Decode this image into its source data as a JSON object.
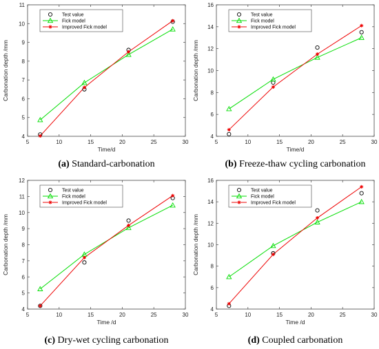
{
  "chart_data": [
    {
      "type": "line",
      "caption_letter": "(a)",
      "caption_text": "Standard-carbonation",
      "xlabel": "Time/d",
      "ylabel": "Carbonation depth /mm",
      "xlim": [
        5,
        30
      ],
      "ylim": [
        4,
        11
      ],
      "xticks": [
        5,
        10,
        15,
        20,
        25,
        30
      ],
      "yticks": [
        4,
        5,
        6,
        7,
        8,
        9,
        10,
        11
      ],
      "legend_position": "top-left",
      "series": [
        {
          "name": "Test value",
          "style": "circle",
          "color": "#000000",
          "x": [
            7,
            14,
            21,
            28
          ],
          "y": [
            4.1,
            6.5,
            8.6,
            10.1
          ]
        },
        {
          "name": "Fick model",
          "style": "triangle",
          "color": "#00dd00",
          "x": [
            7,
            14,
            21,
            28
          ],
          "y": [
            4.87,
            6.85,
            8.35,
            9.7
          ]
        },
        {
          "name": "Improved Fick model",
          "style": "star",
          "color": "#ee0000",
          "x": [
            7,
            14,
            21,
            28
          ],
          "y": [
            4.02,
            6.6,
            8.5,
            10.15
          ]
        }
      ]
    },
    {
      "type": "line",
      "caption_letter": "(b)",
      "caption_text": "Freeze-thaw cycling carbonation",
      "xlabel": "Time/d",
      "ylabel": "Carbonation depth /mm",
      "xlim": [
        5,
        30
      ],
      "ylim": [
        4,
        16
      ],
      "xticks": [
        5,
        10,
        15,
        20,
        25,
        30
      ],
      "yticks": [
        4,
        6,
        8,
        10,
        12,
        14,
        16
      ],
      "legend_position": "top-left",
      "series": [
        {
          "name": "Test value",
          "style": "circle",
          "color": "#000000",
          "x": [
            7,
            14,
            21,
            28
          ],
          "y": [
            4.2,
            8.9,
            12.1,
            13.5
          ]
        },
        {
          "name": "Fick model",
          "style": "triangle",
          "color": "#00dd00",
          "x": [
            7,
            14,
            21,
            28
          ],
          "y": [
            6.5,
            9.2,
            11.2,
            13.0
          ]
        },
        {
          "name": "Improved Fick model",
          "style": "star",
          "color": "#ee0000",
          "x": [
            7,
            14,
            21,
            28
          ],
          "y": [
            4.6,
            8.5,
            11.5,
            14.1
          ]
        }
      ]
    },
    {
      "type": "line",
      "caption_letter": "(c)",
      "caption_text": "Dry-wet cycling carbonation",
      "xlabel": "Time /d",
      "ylabel": "Carbonation depth /mm",
      "xlim": [
        5,
        30
      ],
      "ylim": [
        4,
        12
      ],
      "xticks": [
        5,
        10,
        15,
        20,
        25,
        30
      ],
      "yticks": [
        4,
        5,
        6,
        7,
        8,
        9,
        10,
        11,
        12
      ],
      "legend_position": "top-left",
      "series": [
        {
          "name": "Test value",
          "style": "circle",
          "color": "#000000",
          "x": [
            7,
            14,
            21,
            28
          ],
          "y": [
            4.2,
            6.9,
            9.5,
            10.9
          ]
        },
        {
          "name": "Fick model",
          "style": "triangle",
          "color": "#00dd00",
          "x": [
            7,
            14,
            21,
            28
          ],
          "y": [
            5.25,
            7.4,
            9.05,
            10.45
          ]
        },
        {
          "name": "Improved Fick model",
          "style": "star",
          "color": "#ee0000",
          "x": [
            7,
            14,
            21,
            28
          ],
          "y": [
            4.2,
            7.2,
            9.2,
            11.05
          ]
        }
      ]
    },
    {
      "type": "line",
      "caption_letter": "(d)",
      "caption_text": "Coupled carbonation",
      "xlabel": "Time /d",
      "ylabel": "Carbonation depth /mm",
      "xlim": [
        5,
        30
      ],
      "ylim": [
        4,
        16
      ],
      "xticks": [
        5,
        10,
        15,
        20,
        25,
        30
      ],
      "yticks": [
        4,
        6,
        8,
        10,
        12,
        14,
        16
      ],
      "legend_position": "top-left",
      "series": [
        {
          "name": "Test value",
          "style": "circle",
          "color": "#000000",
          "x": [
            7,
            14,
            21,
            28
          ],
          "y": [
            4.3,
            9.2,
            13.2,
            14.8
          ]
        },
        {
          "name": "Fick model",
          "style": "triangle",
          "color": "#00dd00",
          "x": [
            7,
            14,
            21,
            28
          ],
          "y": [
            7.0,
            9.9,
            12.1,
            14.0
          ]
        },
        {
          "name": "Improved Fick model",
          "style": "star",
          "color": "#ee0000",
          "x": [
            7,
            14,
            21,
            28
          ],
          "y": [
            4.5,
            9.1,
            12.5,
            15.4
          ]
        }
      ]
    }
  ]
}
